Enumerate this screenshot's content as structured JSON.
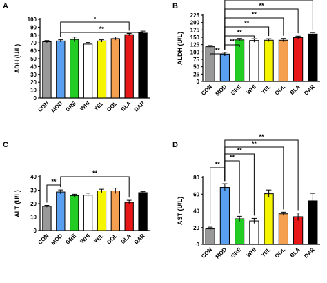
{
  "colors": {
    "CON": "#999999",
    "MOD": "#5aa0f0",
    "GRE": "#22cc22",
    "WHI": "#ffffff",
    "YEL": "#f5f500",
    "OOL": "#f5a050",
    "BLA": "#e81818",
    "DAR": "#000000"
  },
  "chart_data": [
    {
      "panel": "A",
      "type": "bar",
      "ylabel": "ADH (U/L)",
      "ylim": [
        0,
        100
      ],
      "yticks": [
        0,
        10,
        20,
        30,
        40,
        50,
        60,
        70,
        80,
        90,
        100
      ],
      "categories": [
        "CON",
        "MOD",
        "GRE",
        "WHI",
        "YEL",
        "OOL",
        "BLA",
        "DAR"
      ],
      "values": [
        71.5,
        72.5,
        74.5,
        68.5,
        72.5,
        75.5,
        80.5,
        82.5
      ],
      "errors": [
        1.5,
        1.5,
        3.0,
        2.0,
        1.5,
        2.0,
        1.5,
        2.5
      ],
      "significance": [
        {
          "from": "MOD",
          "to": "DAR",
          "label": "**"
        },
        {
          "from": "MOD",
          "to": "BLA",
          "label": "*"
        }
      ]
    },
    {
      "panel": "B",
      "type": "bar",
      "ylabel": "ALDH (U/L)",
      "ylim": [
        0,
        225
      ],
      "yticks": [
        0,
        25,
        50,
        75,
        100,
        125,
        150,
        175,
        200,
        225
      ],
      "categories": [
        "CON",
        "MOD",
        "GRE",
        "WHI",
        "YEL",
        "OOL",
        "BLA",
        "DAR"
      ],
      "values": [
        118,
        93,
        141,
        139,
        140,
        140,
        149,
        161
      ],
      "errors": [
        4,
        6,
        5,
        6,
        5,
        6,
        5,
        5
      ],
      "significance": [
        {
          "from": "CON",
          "to": "MOD",
          "label": "**"
        },
        {
          "from": "MOD",
          "to": "GRE",
          "label": "**"
        },
        {
          "from": "MOD",
          "to": "WHI",
          "label": "**"
        },
        {
          "from": "MOD",
          "to": "YEL",
          "label": "**"
        },
        {
          "from": "MOD",
          "to": "OOL",
          "label": "**"
        },
        {
          "from": "MOD",
          "to": "BLA",
          "label": "**"
        },
        {
          "from": "MOD",
          "to": "DAR",
          "label": "**"
        }
      ]
    },
    {
      "panel": "C",
      "type": "bar",
      "ylabel": "ALT (U/L)",
      "ylim": [
        0,
        40
      ],
      "yticks": [
        0,
        10,
        20,
        30,
        40
      ],
      "categories": [
        "CON",
        "MOD",
        "GRE",
        "WHI",
        "YEL",
        "OOL",
        "BLA",
        "DAR"
      ],
      "values": [
        18,
        28.7,
        26,
        26.3,
        29.5,
        29.5,
        21,
        28.2
      ],
      "errors": [
        0.7,
        1.5,
        1.0,
        1.5,
        1.2,
        2.0,
        1.5,
        0.7
      ],
      "significance": [
        {
          "from": "CON",
          "to": "MOD",
          "label": "**"
        },
        {
          "from": "MOD",
          "to": "BLA",
          "label": "**"
        }
      ]
    },
    {
      "panel": "D",
      "type": "bar",
      "ylabel": "AST (U/L)",
      "ylim": [
        0,
        80
      ],
      "yticks": [
        0,
        20,
        40,
        60,
        80
      ],
      "categories": [
        "CON",
        "MOD",
        "GRE",
        "WHI",
        "YEL",
        "OOL",
        "BLA",
        "DAR"
      ],
      "values": [
        18.5,
        68,
        30.5,
        28,
        60.5,
        36.5,
        33,
        52
      ],
      "errors": [
        2.0,
        4.5,
        3.0,
        3.0,
        4.5,
        2.0,
        4.5,
        9.0
      ],
      "significance": [
        {
          "from": "CON",
          "to": "MOD",
          "label": "**"
        },
        {
          "from": "MOD",
          "to": "GRE",
          "label": "**"
        },
        {
          "from": "MOD",
          "to": "WHI",
          "label": "**"
        },
        {
          "from": "MOD",
          "to": "OOL",
          "label": "**"
        },
        {
          "from": "MOD",
          "to": "BLA",
          "label": "**"
        }
      ]
    }
  ]
}
